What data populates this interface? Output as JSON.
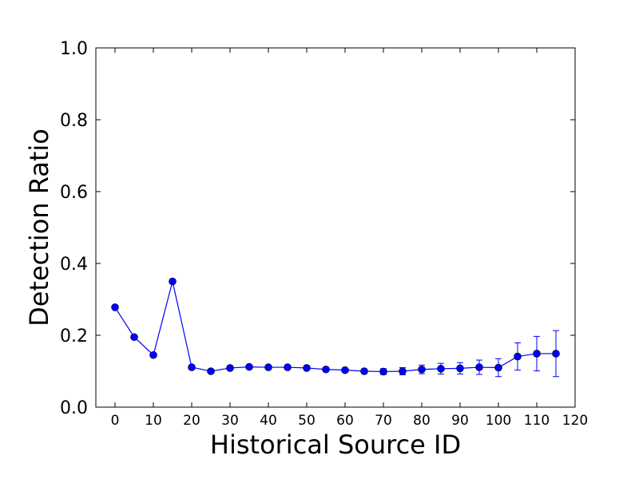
{
  "chart_data": {
    "type": "line",
    "xlabel": "Historical Source ID",
    "ylabel": "Detection Ratio",
    "xlim": [
      -5,
      120
    ],
    "ylim": [
      0.0,
      1.0
    ],
    "xticks": [
      0,
      10,
      20,
      30,
      40,
      50,
      60,
      70,
      80,
      90,
      100,
      110,
      120
    ],
    "yticks": [
      "0.0",
      "0.2",
      "0.4",
      "0.6",
      "0.8",
      "1.0"
    ],
    "grid": false,
    "color": "#0000ff",
    "series": [
      {
        "x": [
          0,
          5,
          10,
          15,
          20,
          25,
          30,
          35,
          40,
          45,
          50,
          55,
          60,
          65,
          70,
          75,
          80,
          85,
          90,
          95,
          100,
          105,
          110,
          115
        ],
        "y": [
          0.278,
          0.195,
          0.145,
          0.35,
          0.111,
          0.1,
          0.109,
          0.112,
          0.111,
          0.111,
          0.109,
          0.105,
          0.103,
          0.1,
          0.099,
          0.1,
          0.105,
          0.107,
          0.108,
          0.111,
          0.11,
          0.141,
          0.149,
          0.149
        ],
        "yerr": [
          0.003,
          0.003,
          0.003,
          0.003,
          0.004,
          0.004,
          0.004,
          0.004,
          0.004,
          0.004,
          0.004,
          0.004,
          0.005,
          0.006,
          0.008,
          0.01,
          0.012,
          0.015,
          0.016,
          0.02,
          0.025,
          0.038,
          0.048,
          0.064
        ]
      }
    ]
  }
}
